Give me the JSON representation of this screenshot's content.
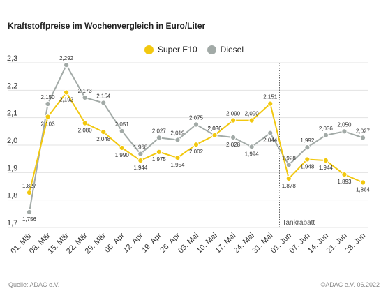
{
  "chart_data": {
    "type": "line",
    "title": "Kraftstoffpreise im Wochenvergleich in Euro/Liter",
    "categories": [
      "01. Mär",
      "08. Mär",
      "15. Mär",
      "22. Mär",
      "29. Mär",
      "05. Apr",
      "12. Apr",
      "19. Apr",
      "26. Apr",
      "03. Mai",
      "10. Mai",
      "17. Mai",
      "24. Mai",
      "31. Mai",
      "01. Jun",
      "07. Jun",
      "14. Jun",
      "21. Jun",
      "28. Jun"
    ],
    "series": [
      {
        "name": "Super E10",
        "color": "#f2c80f",
        "values": [
          1.827,
          2.103,
          2.192,
          2.08,
          2.048,
          1.99,
          1.944,
          1.975,
          1.954,
          2.002,
          2.036,
          2.09,
          2.09,
          2.151,
          1.878,
          1.948,
          1.944,
          1.893,
          1.864
        ],
        "labels": [
          "1,827",
          "2,103",
          "2,192",
          "2,080",
          "2,048",
          "1,990",
          "1,944",
          "1,975",
          "1,954",
          "2,002",
          "2,036",
          "2,090",
          "2,090",
          "2,151",
          "1,878",
          "1,948",
          "1,944",
          "1,893",
          "1,864"
        ]
      },
      {
        "name": "Diesel",
        "color": "#a2aaa7",
        "values": [
          1.756,
          2.15,
          2.292,
          2.173,
          2.154,
          2.051,
          1.968,
          2.027,
          2.019,
          2.075,
          2.036,
          2.028,
          1.994,
          2.044,
          1.928,
          1.992,
          2.036,
          2.05,
          2.027
        ],
        "labels": [
          "1,756",
          "2,150",
          "2,292",
          "2,173",
          "2,154",
          "2,051",
          "1,968",
          "2,027",
          "2,019",
          "2,075",
          "2,036",
          "2,028",
          "1,994",
          "2,044",
          "1,928",
          "1,992",
          "2,036",
          "2,050",
          "2,027"
        ]
      }
    ],
    "yticks": [
      1.7,
      1.8,
      1.9,
      2.0,
      2.1,
      2.2,
      2.3
    ],
    "ytick_labels": [
      "1,7",
      "1,8",
      "1,9",
      "2,0",
      "2,1",
      "2,2",
      "2,3"
    ],
    "ylim": [
      1.7,
      2.3
    ],
    "grid": true,
    "legend_position": "top-center",
    "annotation": {
      "text": "Tankrabatt",
      "category_index": 13
    }
  },
  "footer": {
    "source": "Quelle: ADAC e.V.",
    "copyright": "©ADAC e.V.  06.2022"
  }
}
